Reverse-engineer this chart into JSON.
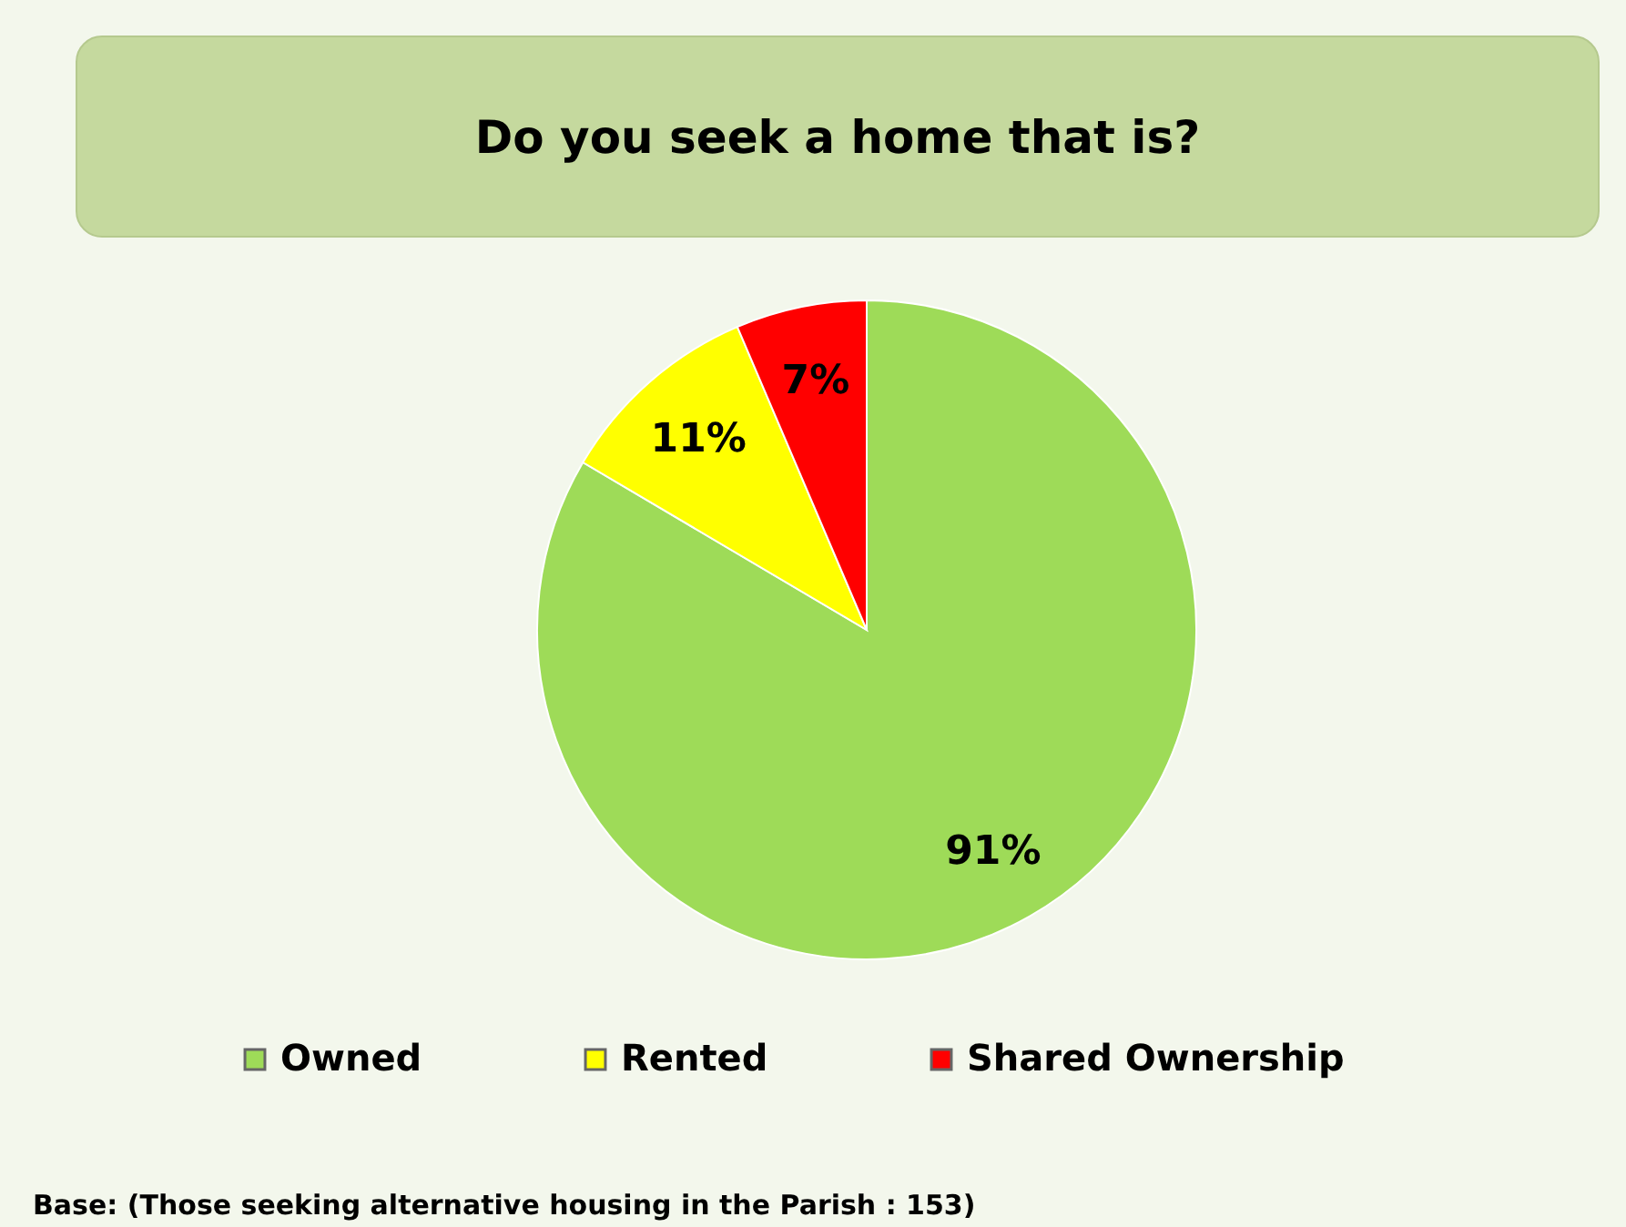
{
  "chart_data": {
    "type": "pie",
    "title": "Do you seek a home that is?",
    "categories": [
      "Owned",
      "Rented",
      "Shared Ownership"
    ],
    "values": [
      91,
      11,
      7
    ],
    "colors": [
      "#9edb58",
      "#ffff00",
      "#ff0000"
    ],
    "value_labels": [
      "91%",
      "11%",
      "7%"
    ],
    "legend": "bottom",
    "annotations": [
      "Base: (Those seeking alternative housing in the Parish : 153)"
    ]
  }
}
